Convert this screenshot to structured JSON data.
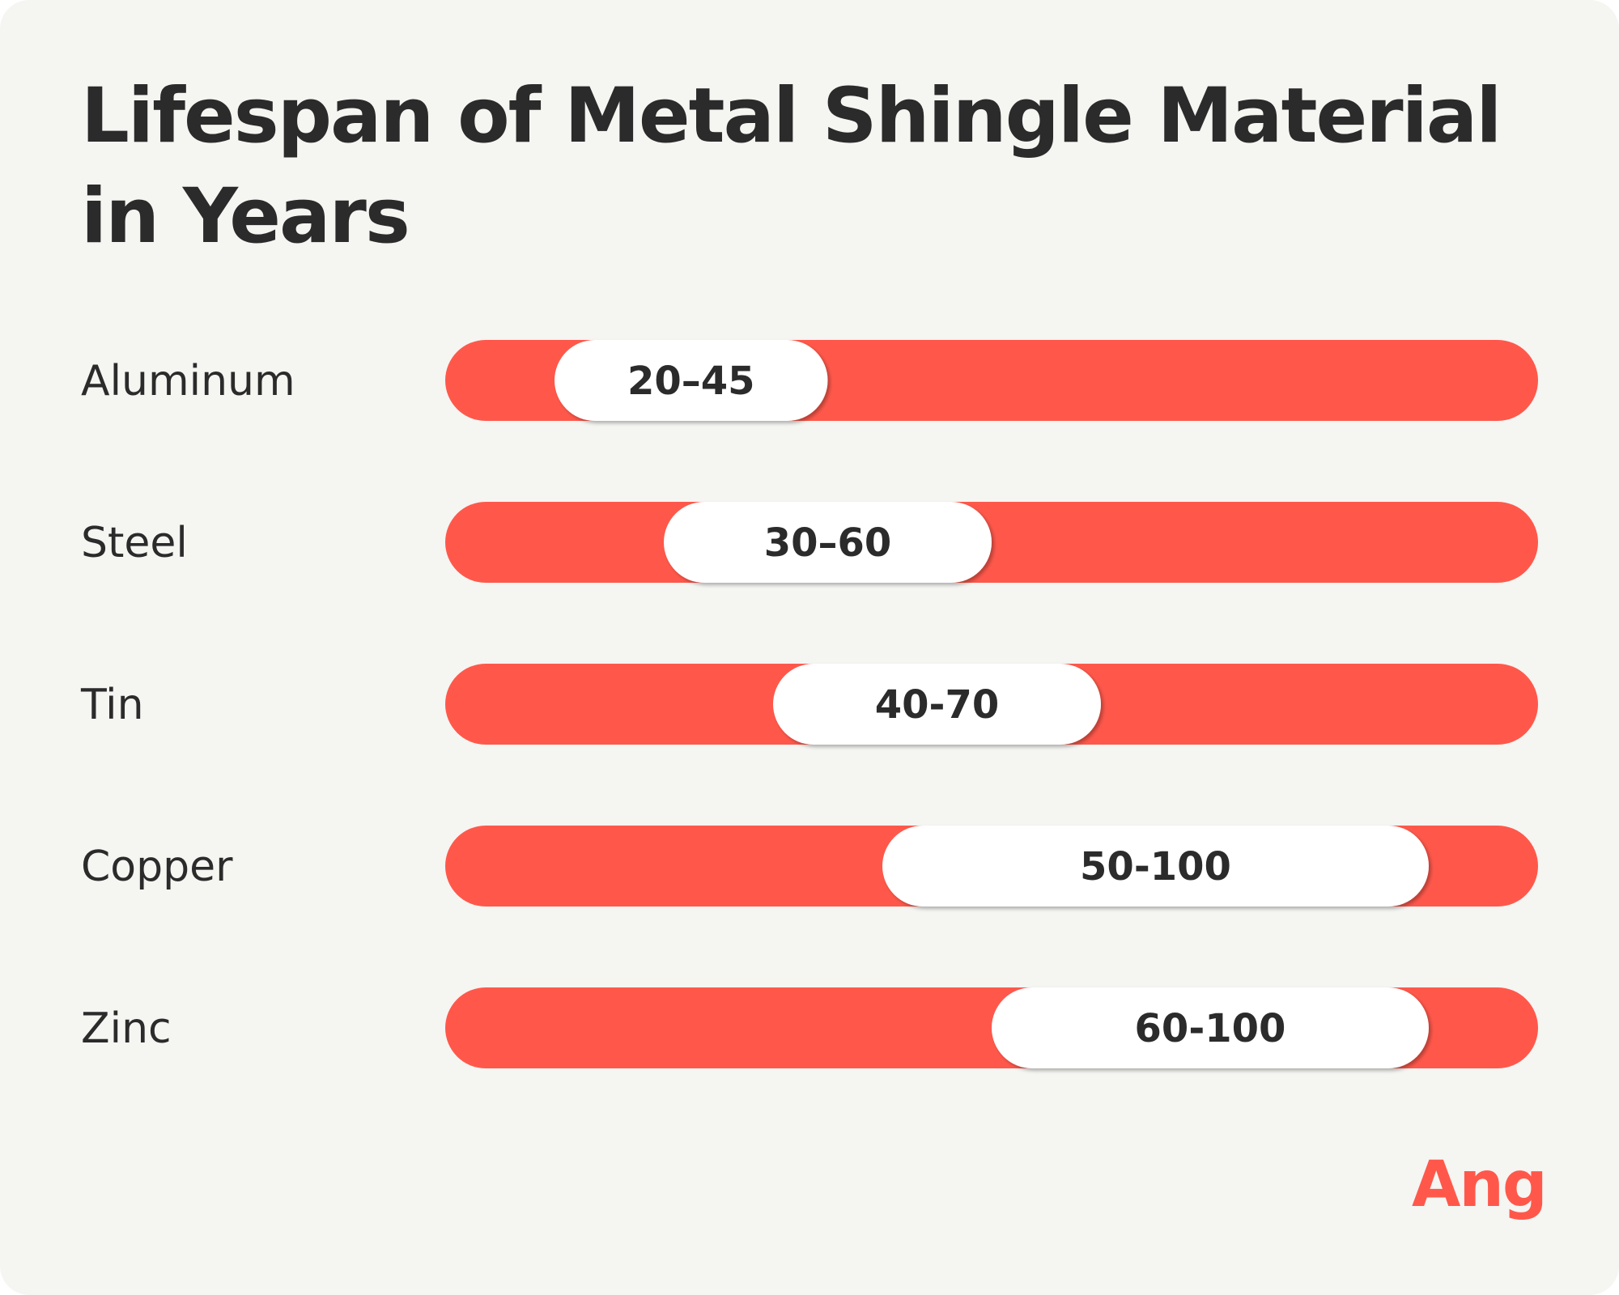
{
  "title": "Lifespan of Metal Shingle Material in Years",
  "brand": {
    "name": "Angi",
    "color": "#ff584b"
  },
  "colors": {
    "background": "#f5f5f2",
    "track": "#ff584b",
    "pill": "#ffffff",
    "text": "#2b2b2b"
  },
  "chart_data": {
    "type": "bar",
    "orientation": "horizontal",
    "variant": "range",
    "categories": [
      "Aluminum",
      "Steel",
      "Tin",
      "Copper",
      "Zinc"
    ],
    "ranges": [
      {
        "category": "Aluminum",
        "low": 20,
        "high": 45,
        "label": "20–45"
      },
      {
        "category": "Steel",
        "low": 30,
        "high": 60,
        "label": "30–60"
      },
      {
        "category": "Tin",
        "low": 40,
        "high": 70,
        "label": "40-70"
      },
      {
        "category": "Copper",
        "low": 50,
        "high": 100,
        "label": "50-100"
      },
      {
        "category": "Zinc",
        "low": 60,
        "high": 100,
        "label": "60-100"
      }
    ],
    "xlim": [
      10,
      110
    ],
    "title": "Lifespan of Metal Shingle Material in Years",
    "xlabel": "",
    "ylabel": "",
    "grid": false,
    "legend": "none"
  }
}
